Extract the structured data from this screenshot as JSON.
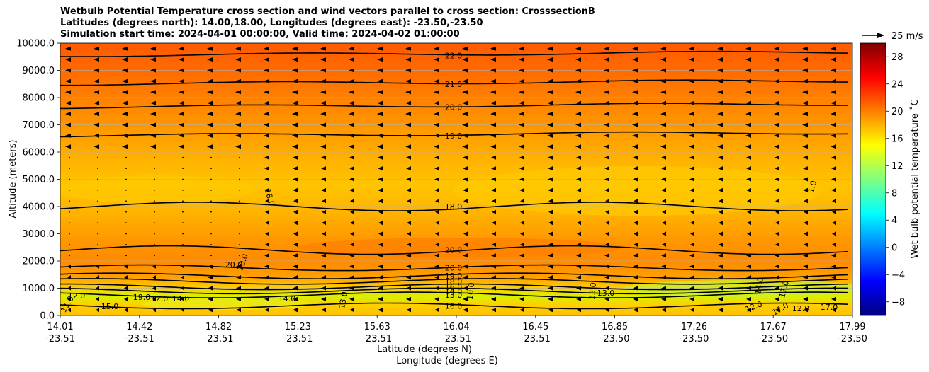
{
  "title_lines": [
    "Wetbulb Potential Temperature cross section and wind vectors parallel to cross section: CrosssectionB",
    "Latitudes (degrees north): 14.00,18.00, Longitudes (degrees east): -23.50,-23.50",
    "Simulation start time: 2024-04-01 00:00:00, Valid time: 2024-04-02 01:00:00"
  ],
  "chart_data": {
    "type": "heatmap",
    "subtype": "filled contour cross section with wind vectors",
    "ylabel": "Altitude (meters)",
    "xlabel_lat": "Latitude (degrees N)",
    "xlabel_lon": "Longitude (degrees E)",
    "ylim": [
      0,
      10000
    ],
    "yticks": [
      "0.0",
      "1000.0",
      "2000.0",
      "3000.0",
      "4000.0",
      "5000.0",
      "6000.0",
      "7000.0",
      "8000.0",
      "9000.0",
      "10000.0"
    ],
    "xticks_lat": [
      "14.01",
      "14.42",
      "14.82",
      "15.23",
      "15.63",
      "16.04",
      "16.45",
      "16.85",
      "17.26",
      "17.67",
      "17.99"
    ],
    "xticks_lon": [
      "-23.51",
      "-23.51",
      "-23.51",
      "-23.51",
      "-23.51",
      "-23.51",
      "-23.51",
      "-23.50",
      "-23.50",
      "-23.50",
      "-23.50"
    ],
    "colorbar_label": "Wet bulb potential temperature ˚C",
    "colorbar_ticks": [
      "−8",
      "−4",
      "0",
      "4",
      "8",
      "12",
      "16",
      "20",
      "24",
      "28"
    ],
    "colorbar_range": [
      -10,
      30
    ],
    "colorbar_colors": [
      "#00007f",
      "#0000ff",
      "#007fff",
      "#00ffff",
      "#7fff7f",
      "#ffff00",
      "#ff7f00",
      "#ff0000",
      "#7f0000"
    ],
    "quiver_key": "25 m/s",
    "contour_levels": [
      {
        "label": "22.0",
        "alt": 9550
      },
      {
        "label": "21.0",
        "alt": 8500
      },
      {
        "label": "20.0",
        "alt": 7650
      },
      {
        "label": "19.0",
        "alt": 6600
      },
      {
        "label": "18.0",
        "alt": 4000
      },
      {
        "label": "20.0",
        "alt": 2400
      },
      {
        "label": "20.0",
        "alt": 1750
      },
      {
        "label": "19.0",
        "alt": 1450
      },
      {
        "label": "18.0",
        "alt": 1250
      },
      {
        "label": "16.0",
        "alt": 1050
      },
      {
        "label": "14.0",
        "alt": 900
      },
      {
        "label": "13.0",
        "alt": 750
      },
      {
        "label": "16.0",
        "alt": 350
      }
    ],
    "extra_labels": [
      "18.0",
      "20.0",
      "20.0",
      "13.0",
      "13.0",
      "17.0",
      "12.0",
      "12.0",
      "17.0",
      "17.0",
      "11.0",
      "15.0",
      "19.0",
      "14.0",
      "12.0",
      "12.0",
      "14.0",
      "13.0",
      "10.0",
      "1.0",
      "14.0"
    ]
  }
}
